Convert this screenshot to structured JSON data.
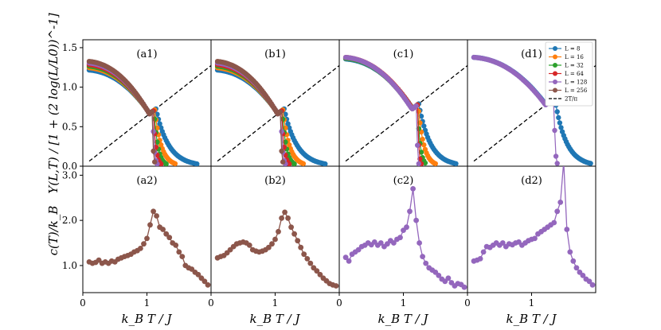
{
  "chart_data": {
    "type": "line",
    "layout": "2x4 grid of panels with shared axes",
    "xlabel": "k_B T / J",
    "ylabel_top": "Υ(L,T) / [1 + (2 log(L/L0))^-1]",
    "ylabel_bottom": "c(T)/k_B",
    "x_ticks": [
      "0",
      "1",
      "0",
      "1",
      "0",
      "1",
      "0",
      "1"
    ],
    "xlim": [
      0,
      2
    ],
    "ylim_top": [
      0,
      1.6
    ],
    "ylim_bottom": [
      0.4,
      3.2
    ],
    "yticks_top": [
      "0.0",
      "0.5",
      "1.0",
      "1.5"
    ],
    "yticks_bottom": [
      "1.0",
      "2.0",
      "3.0"
    ],
    "legend": {
      "placement": "top-right of panel (d1)",
      "entries": [
        {
          "label": "L = 8",
          "color": "#1f77b4",
          "style": "line+marker"
        },
        {
          "label": "L = 16",
          "color": "#ff7f0e",
          "style": "line+marker"
        },
        {
          "label": "L = 32",
          "color": "#2ca02c",
          "style": "line+marker"
        },
        {
          "label": "L = 64",
          "color": "#d62728",
          "style": "line+marker"
        },
        {
          "label": "L = 128",
          "color": "#9467bd",
          "style": "line+marker"
        },
        {
          "label": "L = 256",
          "color": "#8c564b",
          "style": "line+marker"
        },
        {
          "label": "2T/π",
          "color": "#000000",
          "style": "dashed"
        }
      ]
    },
    "colors": {
      "L8": "#1f77b4",
      "L16": "#ff7f0e",
      "L32": "#2ca02c",
      "L64": "#d62728",
      "L128": "#9467bd",
      "L256": "#8c564b"
    },
    "reference_line": {
      "label": "2T/π",
      "slope": 0.6366
    },
    "panels_top": [
      {
        "label": "(a1)",
        "sizes": [
          "L8",
          "L16",
          "L32",
          "L64",
          "L128",
          "L256"
        ],
        "y0": {
          "L8": 1.22,
          "L16": 1.25,
          "L32": 1.27,
          "L64": 1.29,
          "L128": 1.31,
          "L256": 1.33
        },
        "tc": {
          "L8": 1.14,
          "L16": 1.12,
          "L32": 1.11,
          "L64": 1.1,
          "L128": 1.09,
          "L256": 1.08
        },
        "t_end": {
          "L8": 1.78,
          "L16": 1.45,
          "L32": 1.3,
          "L64": 1.22,
          "L128": 1.16,
          "L256": 1.13
        }
      },
      {
        "label": "(b1)",
        "sizes": [
          "L8",
          "L16",
          "L32",
          "L64",
          "L128",
          "L256"
        ],
        "y0": {
          "L8": 1.22,
          "L16": 1.25,
          "L32": 1.27,
          "L64": 1.29,
          "L128": 1.31,
          "L256": 1.33
        },
        "tc": {
          "L8": 1.14,
          "L16": 1.12,
          "L32": 1.11,
          "L64": 1.1,
          "L128": 1.09,
          "L256": 1.08
        },
        "t_end": {
          "L8": 1.78,
          "L16": 1.45,
          "L32": 1.3,
          "L64": 1.22,
          "L128": 1.16,
          "L256": 1.13
        }
      },
      {
        "label": "(c1)",
        "sizes": [
          "L8",
          "L16",
          "L32",
          "L64",
          "L128"
        ],
        "y0": {
          "L8": 1.36,
          "L16": 1.37,
          "L32": 1.37,
          "L64": 1.38,
          "L128": 1.38
        },
        "tc": {
          "L8": 1.24,
          "L16": 1.23,
          "L32": 1.22,
          "L64": 1.22,
          "L128": 1.21
        },
        "t_end": {
          "L8": 1.82,
          "L16": 1.5,
          "L32": 1.35,
          "L64": 1.28,
          "L128": 1.24
        }
      },
      {
        "label": "(d1)",
        "sizes": [
          "L8",
          "L128"
        ],
        "y0": {
          "L8": 1.38,
          "L128": 1.38
        },
        "tc": {
          "L8": 1.36,
          "L128": 1.35
        },
        "t_end": {
          "L8": 1.92,
          "L128": 1.4
        }
      }
    ],
    "panels_bottom": [
      {
        "label": "(a2)",
        "color": "#8c564b",
        "x": [
          0.1,
          0.15,
          0.2,
          0.25,
          0.3,
          0.35,
          0.4,
          0.45,
          0.5,
          0.55,
          0.6,
          0.65,
          0.7,
          0.75,
          0.8,
          0.85,
          0.9,
          0.95,
          1.0,
          1.05,
          1.1,
          1.15,
          1.2,
          1.25,
          1.3,
          1.35,
          1.4,
          1.45,
          1.5,
          1.55,
          1.6,
          1.65,
          1.7,
          1.75,
          1.8,
          1.85,
          1.9,
          1.95
        ],
        "y": [
          1.08,
          1.05,
          1.07,
          1.12,
          1.05,
          1.08,
          1.05,
          1.1,
          1.08,
          1.14,
          1.17,
          1.2,
          1.22,
          1.25,
          1.3,
          1.33,
          1.38,
          1.48,
          1.6,
          1.9,
          2.2,
          2.1,
          1.85,
          1.8,
          1.7,
          1.62,
          1.5,
          1.45,
          1.3,
          1.2,
          1.0,
          0.95,
          0.92,
          0.85,
          0.8,
          0.72,
          0.65,
          0.57
        ]
      },
      {
        "label": "(b2)",
        "color": "#8c564b",
        "x": [
          0.1,
          0.15,
          0.2,
          0.25,
          0.3,
          0.35,
          0.4,
          0.45,
          0.5,
          0.55,
          0.6,
          0.65,
          0.7,
          0.75,
          0.8,
          0.85,
          0.9,
          0.95,
          1.0,
          1.05,
          1.1,
          1.15,
          1.2,
          1.25,
          1.3,
          1.35,
          1.4,
          1.45,
          1.5,
          1.55,
          1.6,
          1.65,
          1.7,
          1.75,
          1.8,
          1.85,
          1.9,
          1.95
        ],
        "y": [
          1.17,
          1.2,
          1.22,
          1.28,
          1.35,
          1.42,
          1.48,
          1.5,
          1.52,
          1.5,
          1.45,
          1.35,
          1.32,
          1.3,
          1.32,
          1.35,
          1.4,
          1.48,
          1.58,
          1.75,
          2.05,
          2.18,
          2.05,
          1.85,
          1.7,
          1.55,
          1.4,
          1.25,
          1.15,
          1.05,
          0.95,
          0.88,
          0.8,
          0.72,
          0.66,
          0.6,
          0.57,
          0.55
        ]
      },
      {
        "label": "(c2)",
        "color": "#9467bd",
        "x": [
          0.1,
          0.15,
          0.2,
          0.25,
          0.3,
          0.35,
          0.4,
          0.45,
          0.5,
          0.55,
          0.6,
          0.65,
          0.7,
          0.75,
          0.8,
          0.85,
          0.9,
          0.95,
          1.0,
          1.05,
          1.1,
          1.15,
          1.2,
          1.25,
          1.3,
          1.35,
          1.4,
          1.45,
          1.5,
          1.55,
          1.6,
          1.65,
          1.7,
          1.75,
          1.8,
          1.85,
          1.9,
          1.95
        ],
        "y": [
          1.18,
          1.1,
          1.25,
          1.3,
          1.35,
          1.42,
          1.45,
          1.5,
          1.46,
          1.52,
          1.45,
          1.5,
          1.42,
          1.48,
          1.55,
          1.5,
          1.58,
          1.62,
          1.78,
          1.85,
          2.2,
          2.7,
          2.0,
          1.5,
          1.2,
          1.05,
          0.95,
          0.9,
          0.85,
          0.78,
          0.7,
          0.65,
          0.72,
          0.62,
          0.55,
          0.6,
          0.58,
          0.52
        ]
      },
      {
        "label": "(d2)",
        "color": "#9467bd",
        "x": [
          0.1,
          0.15,
          0.2,
          0.25,
          0.3,
          0.35,
          0.4,
          0.45,
          0.5,
          0.55,
          0.6,
          0.65,
          0.7,
          0.75,
          0.8,
          0.85,
          0.9,
          0.95,
          1.0,
          1.05,
          1.1,
          1.15,
          1.2,
          1.25,
          1.3,
          1.35,
          1.4,
          1.45,
          1.5,
          1.55,
          1.6,
          1.65,
          1.7,
          1.75,
          1.8,
          1.85,
          1.9,
          1.95
        ],
        "y": [
          1.1,
          1.12,
          1.15,
          1.3,
          1.42,
          1.4,
          1.45,
          1.5,
          1.45,
          1.5,
          1.42,
          1.48,
          1.46,
          1.5,
          1.52,
          1.45,
          1.5,
          1.55,
          1.58,
          1.6,
          1.7,
          1.75,
          1.8,
          1.85,
          1.9,
          1.95,
          2.2,
          2.4,
          3.3,
          1.8,
          1.3,
          1.1,
          0.95,
          0.85,
          0.78,
          0.7,
          0.65,
          0.57
        ]
      }
    ]
  }
}
